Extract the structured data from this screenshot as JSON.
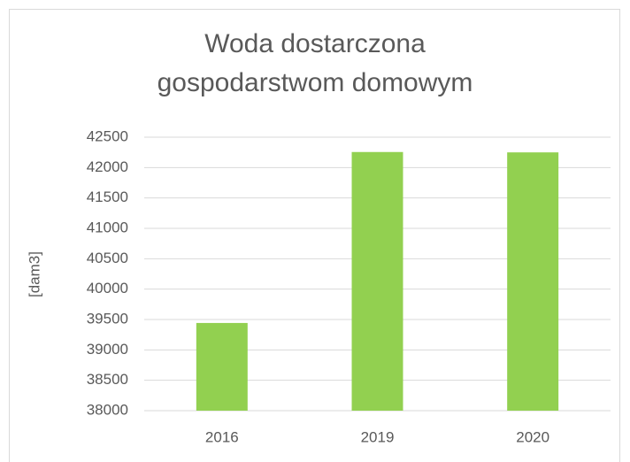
{
  "chart_data": {
    "type": "bar",
    "title": "Woda dostarczona gospodarstwom domowym",
    "ylabel": "[dam3]",
    "categories": [
      "2016",
      "2019",
      "2020"
    ],
    "values": [
      39443,
      42256,
      42250
    ],
    "color": "#92d050",
    "ylim": [
      38000,
      42500
    ],
    "yticks": [
      38000,
      38500,
      39000,
      39500,
      40000,
      40500,
      41000,
      41500,
      42000,
      42500
    ],
    "grid": true
  }
}
